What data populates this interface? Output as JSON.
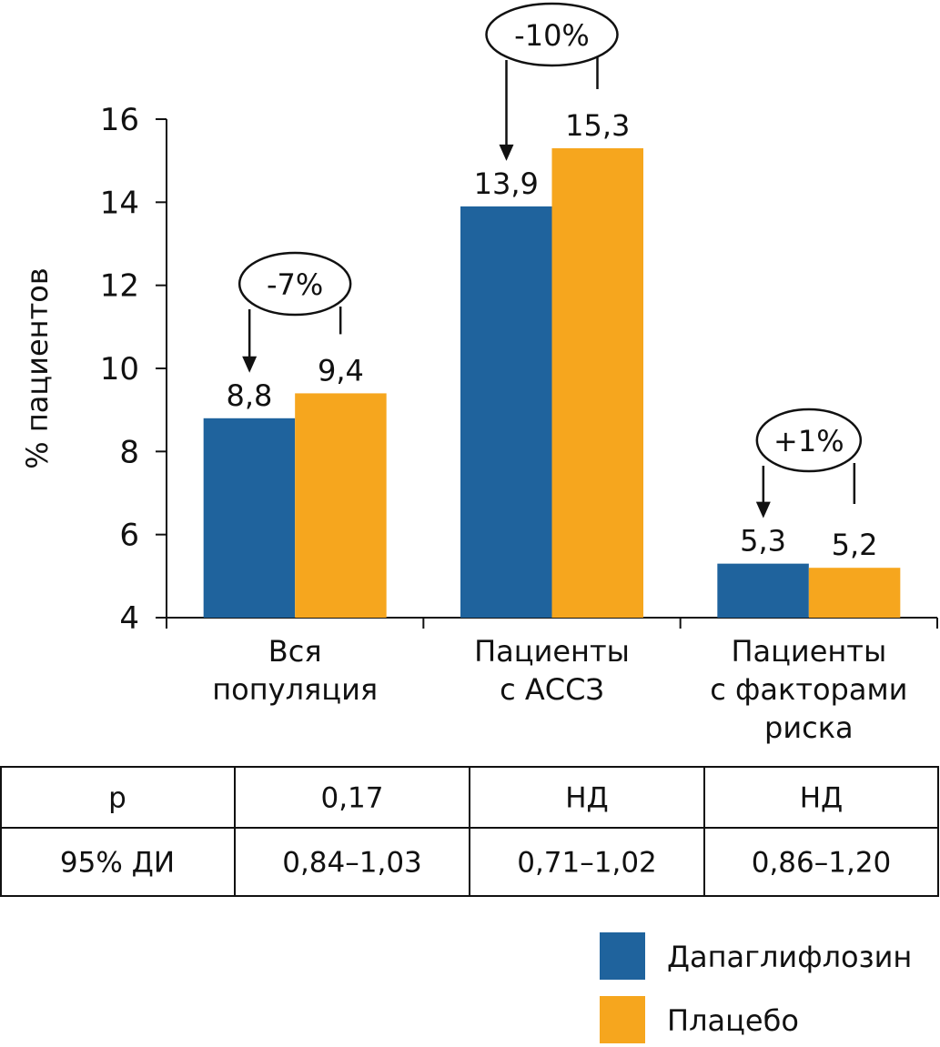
{
  "chart_data": {
    "type": "bar",
    "ylabel": "% пациентов",
    "ylim": [
      4,
      16
    ],
    "yticks": [
      4,
      6,
      8,
      10,
      12,
      14,
      16
    ],
    "categories": [
      [
        "Вся",
        "популяция"
      ],
      [
        "Пациенты",
        "с АССЗ"
      ],
      [
        "Пациенты",
        "с факторами",
        "риска"
      ]
    ],
    "series": [
      {
        "name": "Дапаглифлозин",
        "color": "#1F639D",
        "values": [
          8.8,
          13.9,
          5.3
        ],
        "labels": [
          "8,8",
          "13,9",
          "5,3"
        ]
      },
      {
        "name": "Плацебо",
        "color": "#F6A61E",
        "values": [
          9.4,
          15.3,
          5.2
        ],
        "labels": [
          "9,4",
          "15,3",
          "5,2"
        ]
      }
    ],
    "annotations": [
      "-7%",
      "-10%",
      "+1%"
    ],
    "legend_position": "bottom-right"
  },
  "table": {
    "rows": [
      [
        "p",
        "0,17",
        "НД",
        "НД"
      ],
      [
        "95% ДИ",
        "0,84–1,03",
        "0,71–1,02",
        "0,86–1,20"
      ]
    ]
  }
}
